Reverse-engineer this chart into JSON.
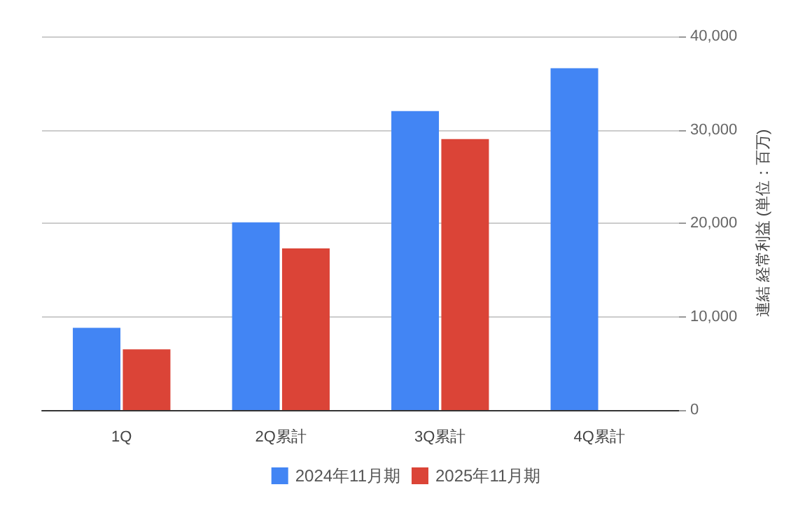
{
  "chart_data": {
    "type": "bar",
    "categories": [
      "1Q",
      "2Q累計",
      "3Q累計",
      "4Q累計"
    ],
    "series": [
      {
        "name": "2024年11月期",
        "color": "#4285f4",
        "values": [
          8800,
          20100,
          32000,
          36600
        ]
      },
      {
        "name": "2025年11月期",
        "color": "#db4437",
        "values": [
          6500,
          17300,
          29000,
          null
        ]
      }
    ],
    "ylabel": "連結 経常利益 (単位：百万)",
    "ylim": [
      0,
      40000
    ],
    "yticks": [
      0,
      {
        "value": 10000,
        "label": "10,000"
      },
      {
        "value": 20000,
        "label": "20,000"
      },
      {
        "value": 30000,
        "label": "30,000"
      },
      {
        "value": 40000,
        "label": "40,000"
      }
    ],
    "grid": "y",
    "legend": "bottom"
  }
}
